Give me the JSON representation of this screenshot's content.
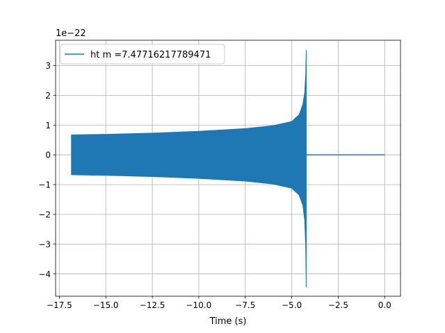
{
  "chart_data": {
    "type": "line",
    "title": "",
    "xlabel": "Time (s)",
    "ylabel": "",
    "y_scale_label": "1e−22",
    "xlim": [
      -17.7,
      0.85
    ],
    "ylim": [
      -4.75,
      3.85
    ],
    "x_ticks": [
      -17.5,
      -15.0,
      -12.5,
      -10.0,
      -7.5,
      -5.0,
      -2.5,
      0.0
    ],
    "x_tick_labels": [
      "−17.5",
      "−15.0",
      "−12.5",
      "−10.0",
      "−7.5",
      "−5.0",
      "−2.5",
      "0.0"
    ],
    "y_ticks": [
      -4,
      -3,
      -2,
      -1,
      0,
      1,
      2,
      3
    ],
    "y_tick_labels": [
      "−4",
      "−3",
      "−2",
      "−1",
      "0",
      "1",
      "2",
      "3"
    ],
    "grid": true,
    "legend_position": "top-left",
    "series": [
      {
        "name": "ht m =7.47716217789471",
        "color": "#1f77b4",
        "waveform": {
          "start_time": -16.85,
          "merger_time": -4.22,
          "end_time": 0.0,
          "envelope": [
            [
              -16.85,
              0.67,
              -0.67
            ],
            [
              -15.0,
              0.69,
              -0.69
            ],
            [
              -12.5,
              0.73,
              -0.73
            ],
            [
              -10.0,
              0.79,
              -0.79
            ],
            [
              -7.5,
              0.88,
              -0.88
            ],
            [
              -6.0,
              0.98,
              -0.98
            ],
            [
              -5.0,
              1.12,
              -1.12
            ],
            [
              -4.6,
              1.35,
              -1.35
            ],
            [
              -4.4,
              1.7,
              -1.7
            ],
            [
              -4.3,
              2.1,
              -2.2
            ],
            [
              -4.25,
              2.7,
              -3.1
            ],
            [
              -4.22,
              3.52,
              -4.45
            ],
            [
              -4.2,
              0.05,
              -0.05
            ],
            [
              0.0,
              0.0,
              0.0
            ]
          ]
        }
      }
    ]
  }
}
